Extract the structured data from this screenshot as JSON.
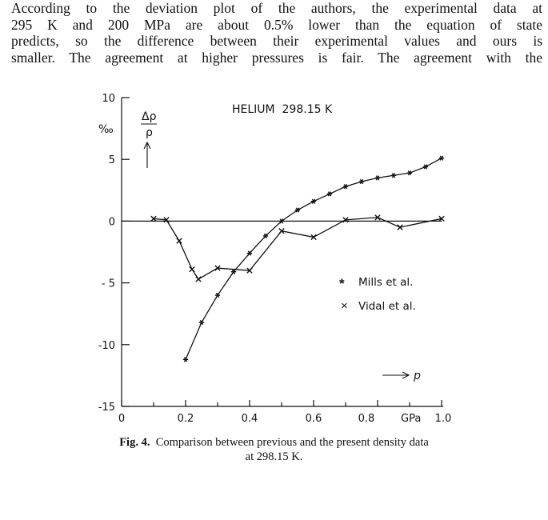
{
  "paragraph": {
    "lines": [
      "According to the deviation plot of the authors, the experimental data at",
      "295 K and 200 MPa are about 0.5% lower than the equation of state",
      "predicts, so the difference between their experimental values and ours is",
      "smaller. The agreement at higher pressures is fair. The agreement with the"
    ]
  },
  "chart_data": {
    "type": "line",
    "title": "HELIUM  298.15 K",
    "xlabel": "p",
    "x_unit": "GPa",
    "ylabel": "Δρ / ρ",
    "y_unit": "‰",
    "xlim": [
      0,
      1.0
    ],
    "ylim": [
      -15,
      10
    ],
    "x_ticks": [
      "0",
      "0.2",
      "0.4",
      "0.6",
      "0.8",
      "1.0"
    ],
    "y_ticks": [
      "10",
      "5",
      "0",
      "- 5",
      "-10",
      "-15"
    ],
    "grid": false,
    "legend": "right",
    "series": [
      {
        "name": "Mills et al.",
        "marker": "*",
        "x": [
          0.2,
          0.25,
          0.3,
          0.35,
          0.4,
          0.45,
          0.5,
          0.55,
          0.6,
          0.65,
          0.7,
          0.75,
          0.8,
          0.85,
          0.9,
          0.95,
          1.0
        ],
        "y": [
          -11.2,
          -8.2,
          -6.0,
          -4.1,
          -2.6,
          -1.2,
          0.0,
          0.9,
          1.6,
          2.2,
          2.8,
          3.2,
          3.5,
          3.7,
          3.9,
          4.4,
          5.1
        ]
      },
      {
        "name": "Vidal et al.",
        "marker": "x",
        "x": [
          0.1,
          0.14,
          0.18,
          0.22,
          0.24,
          0.3,
          0.4,
          0.5,
          0.6,
          0.7,
          0.8,
          0.87,
          1.0
        ],
        "y": [
          0.2,
          0.1,
          -1.6,
          -3.9,
          -4.7,
          -3.8,
          -4.0,
          -0.8,
          -1.3,
          0.1,
          0.3,
          -0.5,
          0.2
        ]
      }
    ]
  },
  "figure": {
    "title": "HELIUM  298.15 K",
    "y_axis_label_top": "Δρ",
    "y_axis_label_bottom": "ρ",
    "y_unit_label": "‰",
    "x_arrow_label": "p",
    "x_unit_label": "GPa",
    "legend": [
      {
        "symbol": "*",
        "label": "Mills et al."
      },
      {
        "symbol": "×",
        "label": "Vidal et al."
      }
    ]
  },
  "caption": {
    "label": "Fig. 4.",
    "line1": "Comparison between previous and the present density data",
    "line2": "at 298.15 K."
  }
}
